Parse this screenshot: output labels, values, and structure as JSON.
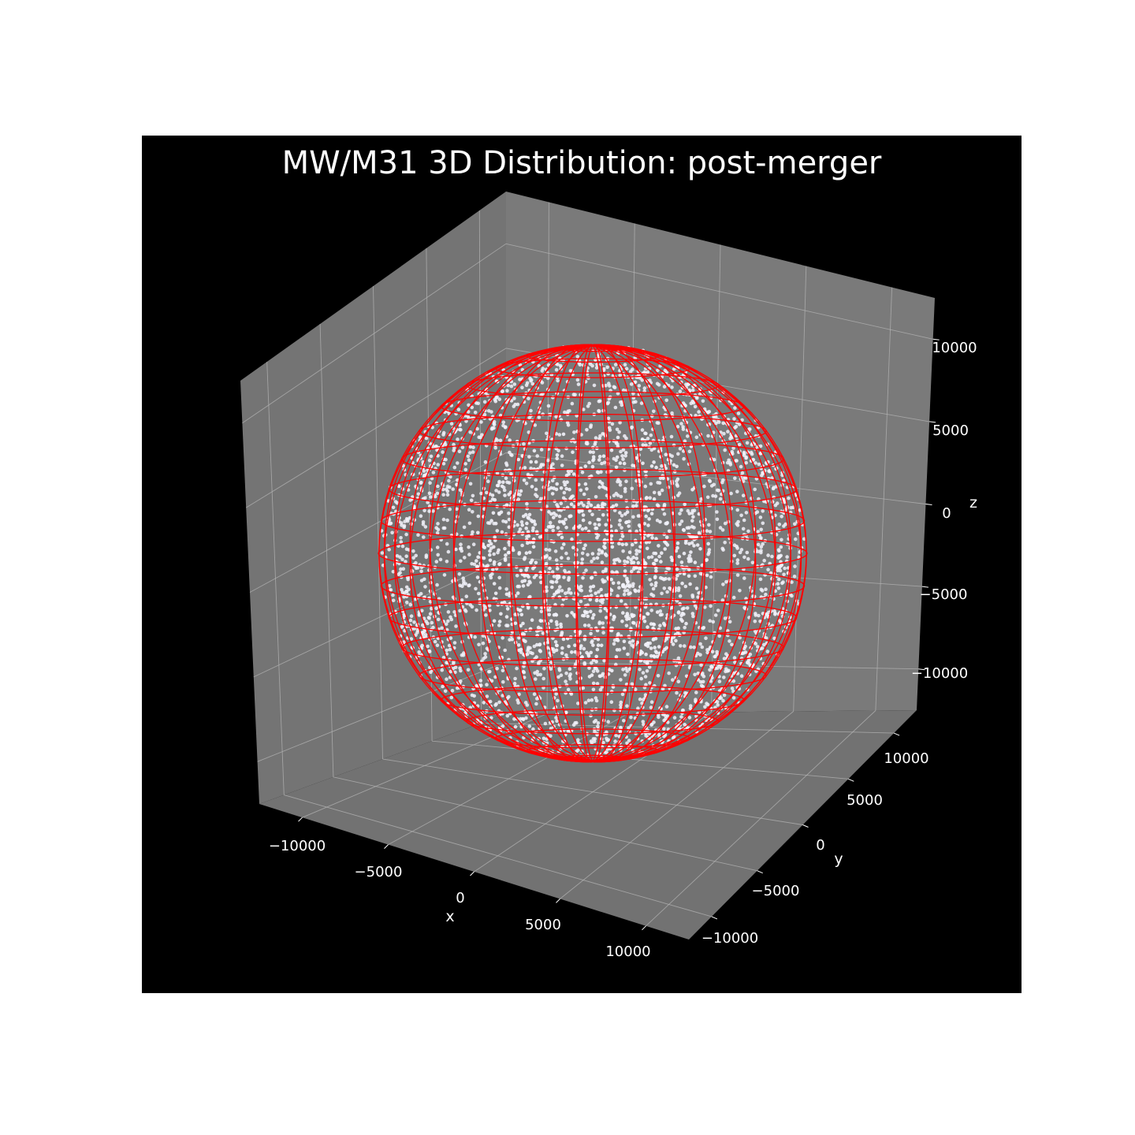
{
  "chart_data": {
    "type": "scatter",
    "title": "MW/M31 3D Distribution: post-merger",
    "projection": "3d",
    "background": "#000000",
    "pane_color": "#757575",
    "grid": true,
    "xlabel": "x",
    "ylabel": "y",
    "zlabel": "z",
    "xticks": [
      -10000,
      -5000,
      0,
      5000,
      10000
    ],
    "yticks": [
      -10000,
      -5000,
      0,
      5000,
      10000
    ],
    "zticks": [
      -10000,
      -5000,
      0,
      5000,
      10000
    ],
    "xlim": [
      -12500,
      12500
    ],
    "ylim": [
      -12500,
      12500
    ],
    "zlim": [
      -12500,
      12500
    ],
    "x_tick_labels": [
      "−10000",
      "−5000",
      "0",
      "5000",
      "10000"
    ],
    "y_tick_labels": [
      "−10000",
      "−5000",
      "0",
      "5000",
      "10000"
    ],
    "z_tick_labels": [
      "−10000",
      "−5000",
      "0",
      "5000",
      "10000"
    ],
    "point_color": "#f2f2fa",
    "point_count_approx": 6000,
    "wireframe": {
      "shape": "sphere",
      "center": [
        0,
        0,
        0
      ],
      "radius": 10000,
      "color": "#ff0000"
    }
  }
}
